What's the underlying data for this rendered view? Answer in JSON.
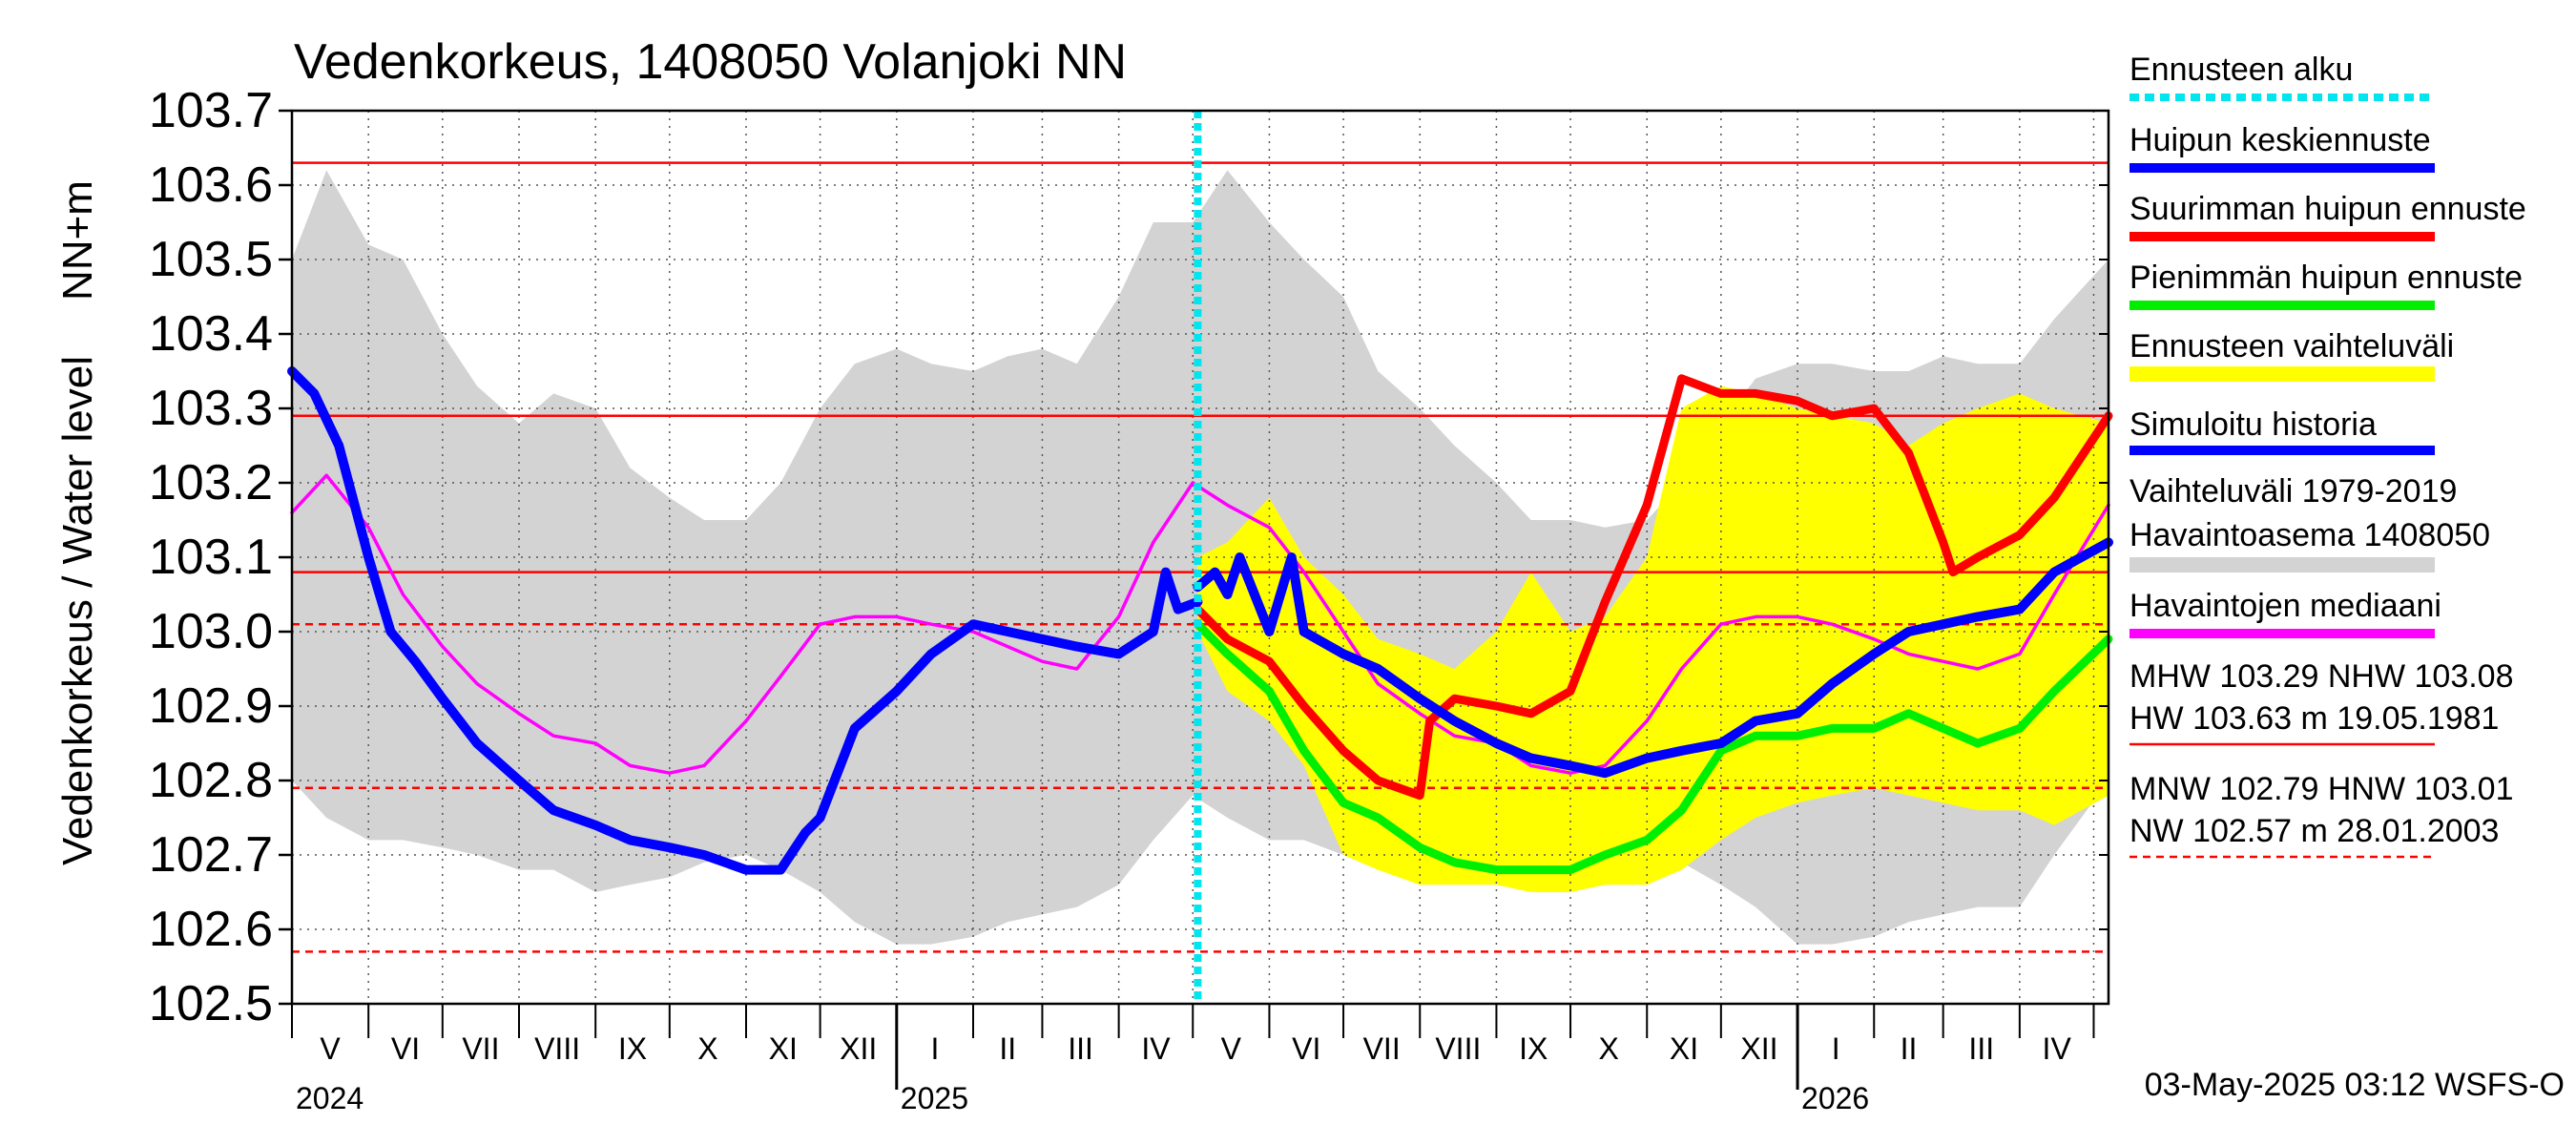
{
  "chart_data": {
    "type": "line",
    "title": "Vedenkorkeus, 1408050 Volanjoki NN",
    "ylabel": "Vedenkorkeus / Water level",
    "yunit": "NN+m",
    "ylim": [
      102.5,
      103.7
    ],
    "yticks": [
      "102.5",
      "102.6",
      "102.7",
      "102.8",
      "102.9",
      "103.0",
      "103.1",
      "103.2",
      "103.3",
      "103.4",
      "103.5",
      "103.6",
      "103.7"
    ],
    "xlim": [
      "2024-05-01",
      "2026-05-07"
    ],
    "month_labels": [
      "V",
      "VI",
      "VII",
      "VIII",
      "IX",
      "X",
      "XI",
      "XII",
      "I",
      "II",
      "III",
      "IV",
      "V",
      "VI",
      "VII",
      "VIII",
      "IX",
      "X",
      "XI",
      "XII",
      "I",
      "II",
      "III",
      "IV"
    ],
    "year_labels": [
      {
        "label": "2024",
        "date": "2024-05-01"
      },
      {
        "label": "2025",
        "date": "2025-01-01"
      },
      {
        "label": "2026",
        "date": "2026-01-01"
      }
    ],
    "forecast_start": "2025-05-03",
    "grid": true,
    "legend_position": "right",
    "colors": {
      "red": "#ff0000",
      "blue": "#0000ff",
      "green": "#00ee00",
      "yellow": "#ffff00",
      "gray": "#d3d3d3",
      "magenta": "#ff00ff",
      "cyan": "#00e5ee",
      "dotgrid": "#555555"
    },
    "reference_lines": [
      {
        "name": "HW",
        "value": 103.63,
        "style": "solid"
      },
      {
        "name": "MHW",
        "value": 103.29,
        "style": "solid"
      },
      {
        "name": "NHW",
        "value": 103.08,
        "style": "solid"
      },
      {
        "name": "HNW",
        "value": 103.01,
        "style": "dashed"
      },
      {
        "name": "MNW",
        "value": 102.79,
        "style": "dashed"
      },
      {
        "name": "NW",
        "value": 102.57,
        "style": "dashed"
      }
    ],
    "series": [
      {
        "name": "Vaihteluväli 1979-2019 Havaintoasema 1408050",
        "kind": "band",
        "x": [
          "2024-05-01",
          "2024-05-15",
          "2024-06-01",
          "2024-06-15",
          "2024-07-01",
          "2024-07-15",
          "2024-08-01",
          "2024-08-15",
          "2024-09-01",
          "2024-09-15",
          "2024-10-01",
          "2024-10-15",
          "2024-11-01",
          "2024-11-15",
          "2024-12-01",
          "2024-12-15",
          "2025-01-01",
          "2025-01-15",
          "2025-02-01",
          "2025-02-15",
          "2025-03-01",
          "2025-03-15",
          "2025-04-01",
          "2025-04-15",
          "2025-05-01",
          "2025-05-15",
          "2025-06-01",
          "2025-06-15",
          "2025-07-01",
          "2025-07-15",
          "2025-08-01",
          "2025-08-15",
          "2025-09-01",
          "2025-09-15",
          "2025-10-01",
          "2025-10-15",
          "2025-11-01",
          "2025-11-15",
          "2025-12-01",
          "2025-12-15",
          "2026-01-01",
          "2026-01-15",
          "2026-02-01",
          "2026-02-15",
          "2026-03-01",
          "2026-03-15",
          "2026-04-01",
          "2026-04-15",
          "2026-05-07"
        ],
        "upper": [
          103.5,
          103.62,
          103.52,
          103.5,
          103.4,
          103.33,
          103.28,
          103.32,
          103.3,
          103.22,
          103.18,
          103.15,
          103.15,
          103.2,
          103.3,
          103.36,
          103.38,
          103.36,
          103.35,
          103.37,
          103.38,
          103.36,
          103.45,
          103.55,
          103.55,
          103.62,
          103.55,
          103.5,
          103.45,
          103.35,
          103.3,
          103.25,
          103.2,
          103.15,
          103.15,
          103.14,
          103.15,
          103.2,
          103.28,
          103.34,
          103.36,
          103.36,
          103.35,
          103.35,
          103.37,
          103.36,
          103.36,
          103.42,
          103.5
        ],
        "lower": [
          102.8,
          102.75,
          102.72,
          102.72,
          102.71,
          102.7,
          102.68,
          102.68,
          102.65,
          102.66,
          102.67,
          102.69,
          102.7,
          102.68,
          102.65,
          102.61,
          102.58,
          102.58,
          102.59,
          102.61,
          102.62,
          102.63,
          102.66,
          102.72,
          102.78,
          102.75,
          102.72,
          102.72,
          102.7,
          102.7,
          102.68,
          102.68,
          102.67,
          102.67,
          102.68,
          102.7,
          102.71,
          102.69,
          102.66,
          102.63,
          102.58,
          102.58,
          102.59,
          102.61,
          102.62,
          102.63,
          102.63,
          102.7,
          102.8
        ]
      },
      {
        "name": "Ennusteen vaihteluväli",
        "kind": "band",
        "x": [
          "2025-05-03",
          "2025-05-15",
          "2025-06-01",
          "2025-06-15",
          "2025-07-01",
          "2025-07-15",
          "2025-08-01",
          "2025-08-15",
          "2025-09-01",
          "2025-09-15",
          "2025-10-01",
          "2025-10-15",
          "2025-11-01",
          "2025-11-15",
          "2025-12-01",
          "2025-12-15",
          "2026-01-01",
          "2026-01-15",
          "2026-02-01",
          "2026-02-15",
          "2026-03-01",
          "2026-03-15",
          "2026-04-01",
          "2026-04-15",
          "2026-05-07"
        ],
        "upper": [
          103.1,
          103.12,
          103.18,
          103.1,
          103.05,
          102.99,
          102.97,
          102.95,
          103.0,
          103.08,
          103.0,
          103.02,
          103.1,
          103.3,
          103.33,
          103.32,
          103.3,
          103.29,
          103.28,
          103.25,
          103.28,
          103.3,
          103.32,
          103.3,
          103.28
        ],
        "lower": [
          103.0,
          102.92,
          102.88,
          102.82,
          102.7,
          102.68,
          102.66,
          102.66,
          102.66,
          102.65,
          102.65,
          102.66,
          102.66,
          102.68,
          102.72,
          102.75,
          102.77,
          102.78,
          102.79,
          102.78,
          102.77,
          102.76,
          102.76,
          102.74,
          102.78
        ]
      },
      {
        "name": "Havaintojen mediaani",
        "kind": "line",
        "x": [
          "2024-05-01",
          "2024-05-15",
          "2024-06-01",
          "2024-06-15",
          "2024-07-01",
          "2024-07-15",
          "2024-08-01",
          "2024-08-15",
          "2024-09-01",
          "2024-09-15",
          "2024-10-01",
          "2024-10-15",
          "2024-11-01",
          "2024-11-15",
          "2024-12-01",
          "2024-12-15",
          "2025-01-01",
          "2025-01-15",
          "2025-02-01",
          "2025-02-15",
          "2025-03-01",
          "2025-03-15",
          "2025-04-01",
          "2025-04-15",
          "2025-05-01",
          "2025-05-15",
          "2025-06-01",
          "2025-06-15",
          "2025-07-01",
          "2025-07-15",
          "2025-08-01",
          "2025-08-15",
          "2025-09-01",
          "2025-09-15",
          "2025-10-01",
          "2025-10-15",
          "2025-11-01",
          "2025-11-15",
          "2025-12-01",
          "2025-12-15",
          "2026-01-01",
          "2026-01-15",
          "2026-02-01",
          "2026-02-15",
          "2026-03-01",
          "2026-03-15",
          "2026-04-01",
          "2026-04-15",
          "2026-05-07"
        ],
        "values": [
          103.16,
          103.21,
          103.14,
          103.05,
          102.98,
          102.93,
          102.89,
          102.86,
          102.85,
          102.82,
          102.81,
          102.82,
          102.88,
          102.94,
          103.01,
          103.02,
          103.02,
          103.01,
          103.0,
          102.98,
          102.96,
          102.95,
          103.02,
          103.12,
          103.2,
          103.17,
          103.14,
          103.08,
          103.0,
          102.93,
          102.89,
          102.86,
          102.85,
          102.82,
          102.81,
          102.82,
          102.88,
          102.95,
          103.01,
          103.02,
          103.02,
          103.01,
          102.99,
          102.97,
          102.96,
          102.95,
          102.97,
          103.05,
          103.17
        ]
      },
      {
        "name": "Simuloitu historia",
        "kind": "line",
        "x": [
          "2024-05-01",
          "2024-05-10",
          "2024-05-20",
          "2024-06-01",
          "2024-06-10",
          "2024-06-20",
          "2024-07-01",
          "2024-07-15",
          "2024-08-01",
          "2024-08-15",
          "2024-09-01",
          "2024-09-15",
          "2024-10-01",
          "2024-10-15",
          "2024-11-01",
          "2024-11-15",
          "2024-11-25",
          "2024-12-01",
          "2024-12-15",
          "2025-01-01",
          "2025-01-15",
          "2025-02-01",
          "2025-02-15",
          "2025-03-01",
          "2025-03-15",
          "2025-04-01",
          "2025-04-15",
          "2025-04-20",
          "2025-04-25",
          "2025-05-03"
        ],
        "values": [
          103.35,
          103.32,
          103.25,
          103.1,
          103.0,
          102.96,
          102.91,
          102.85,
          102.8,
          102.76,
          102.74,
          102.72,
          102.71,
          102.7,
          102.68,
          102.68,
          102.73,
          102.75,
          102.87,
          102.92,
          102.97,
          103.01,
          103.0,
          102.99,
          102.98,
          102.97,
          103.0,
          103.08,
          103.03,
          103.04
        ]
      },
      {
        "name": "Huipun keskiennuste",
        "kind": "line",
        "x": [
          "2025-05-03",
          "2025-05-10",
          "2025-05-15",
          "2025-05-20",
          "2025-06-01",
          "2025-06-10",
          "2025-06-15",
          "2025-07-01",
          "2025-07-15",
          "2025-08-01",
          "2025-08-15",
          "2025-09-01",
          "2025-09-15",
          "2025-10-01",
          "2025-10-15",
          "2025-11-01",
          "2025-11-15",
          "2025-12-01",
          "2025-12-15",
          "2026-01-01",
          "2026-01-15",
          "2026-02-01",
          "2026-02-15",
          "2026-03-01",
          "2026-03-15",
          "2026-04-01",
          "2026-04-15",
          "2026-05-07"
        ],
        "values": [
          103.06,
          103.08,
          103.05,
          103.1,
          103.0,
          103.1,
          103.0,
          102.97,
          102.95,
          102.91,
          102.88,
          102.85,
          102.83,
          102.82,
          102.81,
          102.83,
          102.84,
          102.85,
          102.88,
          102.89,
          102.93,
          102.97,
          103.0,
          103.01,
          103.02,
          103.03,
          103.08,
          103.12
        ]
      },
      {
        "name": "Suurimman huipun ennuste",
        "kind": "line",
        "x": [
          "2025-05-03",
          "2025-05-15",
          "2025-06-01",
          "2025-06-15",
          "2025-07-01",
          "2025-07-15",
          "2025-08-01",
          "2025-08-05",
          "2025-08-15",
          "2025-09-01",
          "2025-09-15",
          "2025-10-01",
          "2025-10-15",
          "2025-11-01",
          "2025-11-15",
          "2025-12-01",
          "2025-12-15",
          "2026-01-01",
          "2026-01-15",
          "2026-02-01",
          "2026-02-15",
          "2026-03-01",
          "2026-03-05",
          "2026-03-15",
          "2026-04-01",
          "2026-04-15",
          "2026-05-07"
        ],
        "values": [
          103.03,
          102.99,
          102.96,
          102.9,
          102.84,
          102.8,
          102.78,
          102.88,
          102.91,
          102.9,
          102.89,
          102.92,
          103.04,
          103.17,
          103.34,
          103.32,
          103.32,
          103.31,
          103.29,
          103.3,
          103.24,
          103.12,
          103.08,
          103.1,
          103.13,
          103.18,
          103.29
        ]
      },
      {
        "name": "Pienimmän huipun ennuste",
        "kind": "line",
        "x": [
          "2025-05-03",
          "2025-05-15",
          "2025-06-01",
          "2025-06-15",
          "2025-07-01",
          "2025-07-15",
          "2025-08-01",
          "2025-08-15",
          "2025-09-01",
          "2025-09-15",
          "2025-10-01",
          "2025-10-15",
          "2025-11-01",
          "2025-11-15",
          "2025-12-01",
          "2025-12-15",
          "2026-01-01",
          "2026-01-15",
          "2026-02-01",
          "2026-02-15",
          "2026-03-01",
          "2026-03-15",
          "2026-04-01",
          "2026-04-15",
          "2026-05-07"
        ],
        "values": [
          103.01,
          102.97,
          102.92,
          102.84,
          102.77,
          102.75,
          102.71,
          102.69,
          102.68,
          102.68,
          102.68,
          102.7,
          102.72,
          102.76,
          102.84,
          102.86,
          102.86,
          102.87,
          102.87,
          102.89,
          102.87,
          102.85,
          102.87,
          102.92,
          102.99
        ]
      }
    ]
  },
  "legend": [
    {
      "label": "Ennusteen alku",
      "color": "#00e5ee",
      "style": "dotted"
    },
    {
      "label": "Huipun keskiennuste",
      "color": "#0000ff",
      "style": "solid"
    },
    {
      "label": "Suurimman huipun ennuste",
      "color": "#ff0000",
      "style": "solid"
    },
    {
      "label": "Pienimmän huipun ennuste",
      "color": "#00ee00",
      "style": "solid"
    },
    {
      "label": "Ennusteen vaihteluväli",
      "color": "#ffff00",
      "style": "solid"
    },
    {
      "label": "Simuloitu historia",
      "color": "#0000ff",
      "style": "solid"
    },
    {
      "label": "Vaihteluväli 1979-2019",
      "label2": " Havaintoasema 1408050",
      "color": "#d3d3d3",
      "style": "solid"
    },
    {
      "label": "Havaintojen mediaani",
      "color": "#ff00ff",
      "style": "solid"
    },
    {
      "label": "MHW 103.29 NHW 103.08",
      "label2": "HW 103.63 m 19.05.1981",
      "color": "#ff0000",
      "style": "thin"
    },
    {
      "label": "MNW 102.79 HNW 103.01",
      "label2": "NW 102.57 m 28.01.2003",
      "color": "#ff0000",
      "style": "dashed"
    }
  ],
  "footer": "03-May-2025 03:12 WSFS-O"
}
